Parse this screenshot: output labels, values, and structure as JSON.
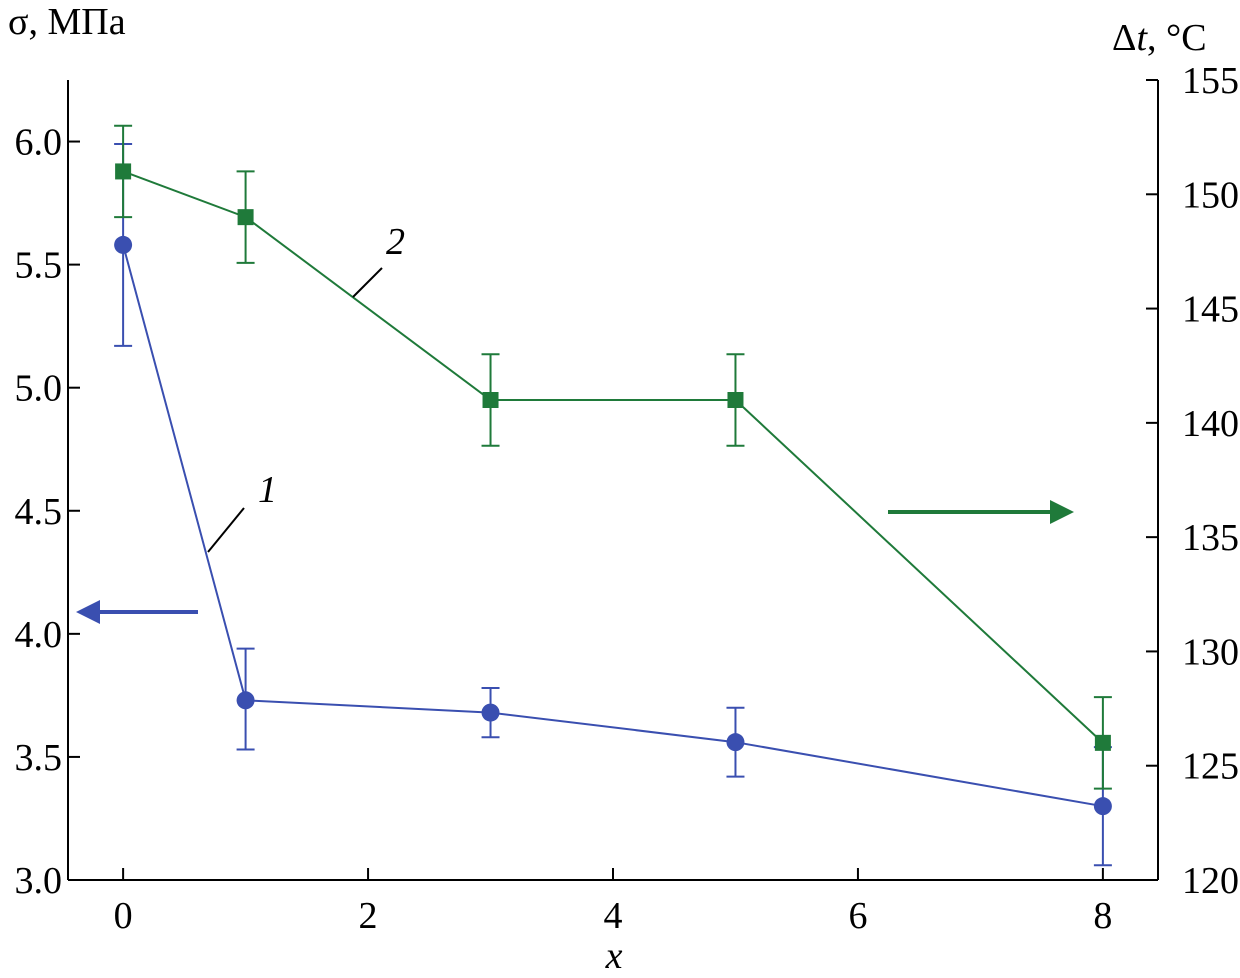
{
  "chart_data": {
    "type": "line",
    "left_axis": {
      "label_prefix": "σ, ",
      "label_unit": "МПа",
      "ylim": [
        3.0,
        6.25
      ],
      "ticks": [
        3.0,
        3.5,
        4.0,
        4.5,
        5.0,
        5.5,
        6.0
      ],
      "tick_labels": [
        "3.0",
        "3.5",
        "4.0",
        "4.5",
        "5.0",
        "5.5",
        "6.0"
      ]
    },
    "right_axis": {
      "label_delta": "Δ",
      "label_var": "t",
      "label_unit": ", °C",
      "ylim": [
        120,
        155
      ],
      "ticks": [
        120,
        125,
        130,
        135,
        140,
        145,
        150,
        155
      ],
      "tick_labels": [
        "120",
        "125",
        "130",
        "135",
        "140",
        "145",
        "150",
        "155"
      ]
    },
    "x_axis": {
      "label": "x",
      "xlim": [
        -0.45,
        8.45
      ],
      "ticks": [
        0,
        2,
        4,
        6,
        8
      ],
      "tick_labels": [
        "0",
        "2",
        "4",
        "6",
        "8"
      ]
    },
    "grid": false,
    "series": [
      {
        "name": "1",
        "axis": "left",
        "marker": "circle",
        "color": "#3a4fb0",
        "points": [
          {
            "x": 0,
            "y": 5.58,
            "err_low": 5.17,
            "err_high": 5.99
          },
          {
            "x": 1,
            "y": 3.73,
            "err_low": 3.53,
            "err_high": 3.94
          },
          {
            "x": 3,
            "y": 3.68,
            "err_low": 3.58,
            "err_high": 3.78
          },
          {
            "x": 5,
            "y": 3.56,
            "err_low": 3.42,
            "err_high": 3.7
          },
          {
            "x": 8,
            "y": 3.3,
            "err_low": 3.06,
            "err_high": 3.54
          }
        ]
      },
      {
        "name": "2",
        "axis": "right",
        "marker": "square",
        "color": "#1f7a3a",
        "points": [
          {
            "x": 0,
            "y": 151,
            "err_low": 149,
            "err_high": 153
          },
          {
            "x": 1,
            "y": 149,
            "err_low": 147,
            "err_high": 151
          },
          {
            "x": 3,
            "y": 141,
            "err_low": 139,
            "err_high": 143
          },
          {
            "x": 5,
            "y": 141,
            "err_low": 139,
            "err_high": 143
          },
          {
            "x": 8,
            "y": 126,
            "err_low": 124,
            "err_high": 128
          }
        ]
      }
    ],
    "axis_indicators": [
      {
        "series": "1",
        "direction": "left"
      },
      {
        "series": "2",
        "direction": "right"
      }
    ]
  }
}
